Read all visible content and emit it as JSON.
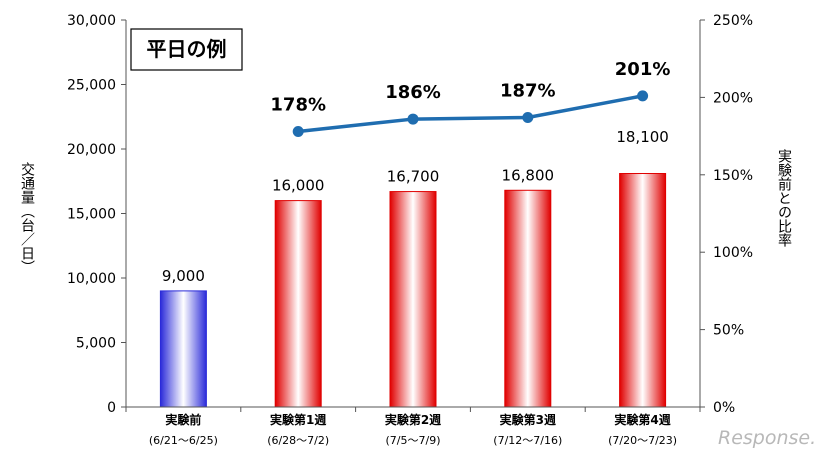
{
  "chart_data": {
    "type": "bar",
    "title": "平日の例",
    "categories": [
      "実験前",
      "実験第1週",
      "実験第2週",
      "実験第3週",
      "実験第4週"
    ],
    "category_sublabels": [
      "(6/21～6/25)",
      "(6/28～7/2)",
      "(7/5～7/9)",
      "(7/12～7/16)",
      "(7/20～7/23)"
    ],
    "series": [
      {
        "axis": "left",
        "type": "bar",
        "values": [
          9000,
          16000,
          16700,
          16800,
          18100
        ],
        "value_labels": [
          "9,000",
          "16,000",
          "16,700",
          "16,800",
          "18,100"
        ],
        "colors": [
          "#2b2bd9",
          "#e00000",
          "#e00000",
          "#e00000",
          "#e00000"
        ]
      },
      {
        "axis": "right",
        "type": "line",
        "values": [
          null,
          178,
          186,
          187,
          201
        ],
        "value_labels": [
          "",
          "178%",
          "186%",
          "187%",
          "201%"
        ],
        "color": "#1f6db0"
      }
    ],
    "ylabel_left": "交通量（台／日）",
    "ylabel_right": "実験前との比率",
    "ylim_left": [
      0,
      30000
    ],
    "ylim_right": [
      0,
      250
    ],
    "yticks_left": [
      "0",
      "5,000",
      "10,000",
      "15,000",
      "20,000",
      "25,000",
      "30,000"
    ],
    "yticks_right": [
      "0%",
      "50%",
      "100%",
      "150%",
      "200%",
      "250%"
    ],
    "grid": false,
    "legend": "none"
  },
  "watermark": "Response."
}
